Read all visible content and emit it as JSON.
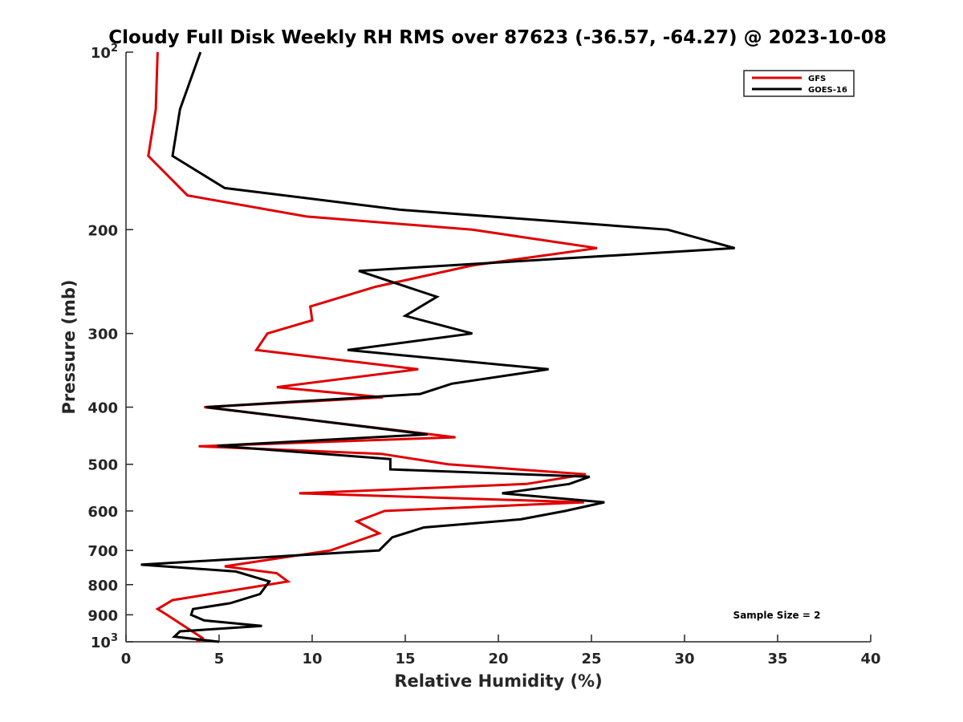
{
  "chart_data": {
    "type": "line",
    "title": "Cloudy Full Disk Weekly RH RMS over 87623 (-36.57, -64.27) @ 2023-10-08",
    "xlabel": "Relative Humidity (%)",
    "ylabel": "Pressure (mb)",
    "xlim": [
      0,
      40
    ],
    "ylim": [
      100,
      1000
    ],
    "y_scale": "log",
    "y_reversed": true,
    "grid": false,
    "legend_position": "top-right",
    "x_ticks": [
      "0",
      "5",
      "10",
      "15",
      "20",
      "25",
      "30",
      "35",
      "40"
    ],
    "y_ticks": [
      {
        "value": 100,
        "base": "10",
        "exp": "2"
      },
      {
        "value": 200,
        "label": "200"
      },
      {
        "value": 300,
        "label": "300"
      },
      {
        "value": 400,
        "label": "400"
      },
      {
        "value": 500,
        "label": "500"
      },
      {
        "value": 600,
        "label": "600"
      },
      {
        "value": 700,
        "label": "700"
      },
      {
        "value": 800,
        "label": "800"
      },
      {
        "value": 900,
        "label": "900"
      },
      {
        "value": 1000,
        "base": "10",
        "exp": "3"
      }
    ],
    "series": [
      {
        "name": "GFS",
        "color": "#e00000",
        "points": [
          [
            1.7,
            100
          ],
          [
            1.6,
            125
          ],
          [
            1.2,
            150
          ],
          [
            3.3,
            175
          ],
          [
            9.7,
            190
          ],
          [
            18.6,
            200
          ],
          [
            25.3,
            215
          ],
          [
            18.6,
            230
          ],
          [
            13.4,
            250
          ],
          [
            9.9,
            270
          ],
          [
            10.0,
            285
          ],
          [
            7.6,
            300
          ],
          [
            7.0,
            320
          ],
          [
            15.7,
            345
          ],
          [
            8.1,
            370
          ],
          [
            13.8,
            385
          ],
          [
            4.2,
            400
          ],
          [
            17.7,
            450
          ],
          [
            3.9,
            466
          ],
          [
            13.7,
            480
          ],
          [
            17.3,
            500
          ],
          [
            24.7,
            520
          ],
          [
            21.5,
            540
          ],
          [
            9.3,
            560
          ],
          [
            24.6,
            580
          ],
          [
            13.9,
            600
          ],
          [
            12.4,
            625
          ],
          [
            13.6,
            655
          ],
          [
            11.0,
            700
          ],
          [
            5.3,
            745
          ],
          [
            8.1,
            765
          ],
          [
            8.7,
            790
          ],
          [
            2.5,
            850
          ],
          [
            1.7,
            880
          ],
          [
            2.2,
            900
          ],
          [
            4.1,
            985
          ],
          [
            3.8,
            1000
          ]
        ]
      },
      {
        "name": "GOES-16",
        "color": "#000000",
        "points": [
          [
            4.0,
            100
          ],
          [
            2.9,
            125
          ],
          [
            2.5,
            150
          ],
          [
            5.3,
            170
          ],
          [
            14.7,
            185
          ],
          [
            29.1,
            200
          ],
          [
            32.7,
            215
          ],
          [
            12.5,
            235
          ],
          [
            16.7,
            260
          ],
          [
            15.0,
            280
          ],
          [
            18.6,
            300
          ],
          [
            11.9,
            320
          ],
          [
            22.7,
            345
          ],
          [
            17.5,
            365
          ],
          [
            15.8,
            380
          ],
          [
            4.3,
            400
          ],
          [
            16.2,
            445
          ],
          [
            4.9,
            465
          ],
          [
            14.2,
            490
          ],
          [
            14.2,
            510
          ],
          [
            24.9,
            525
          ],
          [
            23.8,
            540
          ],
          [
            20.2,
            560
          ],
          [
            25.7,
            580
          ],
          [
            23.6,
            600
          ],
          [
            21.2,
            620
          ],
          [
            16.0,
            640
          ],
          [
            14.3,
            665
          ],
          [
            13.6,
            700
          ],
          [
            0.8,
            740
          ],
          [
            5.9,
            760
          ],
          [
            7.7,
            790
          ],
          [
            7.2,
            830
          ],
          [
            5.6,
            860
          ],
          [
            3.6,
            880
          ],
          [
            3.5,
            900
          ],
          [
            4.2,
            920
          ],
          [
            7.3,
            940
          ],
          [
            2.9,
            960
          ],
          [
            2.6,
            980
          ],
          [
            5.0,
            1000
          ]
        ]
      }
    ],
    "annotation": "Sample Size = 2"
  }
}
